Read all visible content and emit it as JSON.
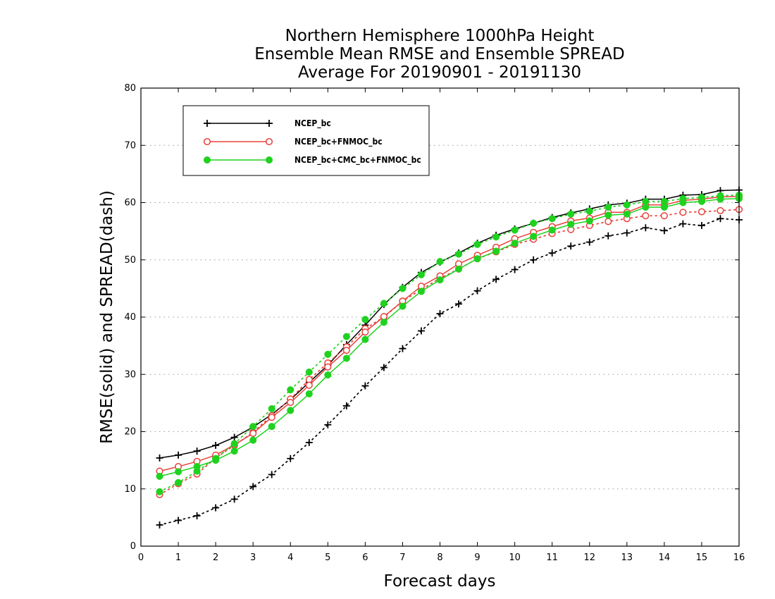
{
  "chart_data": {
    "type": "line",
    "title": [
      "Northern Hemisphere 1000hPa Height",
      "Ensemble Mean RMSE and Ensemble SPREAD",
      "Average For 20190901 - 20191130"
    ],
    "xlabel": "Forecast days",
    "ylabel": "RMSE(solid) and SPREAD(dash)",
    "xlim": [
      0,
      16
    ],
    "ylim": [
      0,
      80
    ],
    "xticks": [
      0,
      1,
      2,
      3,
      4,
      5,
      6,
      7,
      8,
      9,
      10,
      11,
      12,
      13,
      14,
      15,
      16
    ],
    "yticks": [
      0,
      10,
      20,
      30,
      40,
      50,
      60,
      70,
      80
    ],
    "grid": "horizontal dotted",
    "legend_position": "top-left",
    "x": [
      0.5,
      1,
      1.5,
      2,
      2.5,
      3,
      3.5,
      4,
      4.5,
      5,
      5.5,
      6,
      6.5,
      7,
      7.5,
      8,
      8.5,
      9,
      9.5,
      10,
      10.5,
      11,
      11.5,
      12,
      12.5,
      13,
      13.5,
      14,
      14.5,
      15,
      15.5,
      16
    ],
    "series": [
      {
        "name": "NCEP_bc",
        "color": "#000000",
        "marker": "plus",
        "rmse": [
          15.4,
          15.9,
          16.6,
          17.6,
          19.0,
          20.8,
          23.0,
          25.6,
          28.6,
          31.6,
          35.2,
          38.6,
          42.2,
          45.2,
          47.8,
          49.6,
          51.2,
          52.9,
          54.3,
          55.4,
          56.4,
          57.4,
          58.2,
          58.9,
          59.6,
          59.9,
          60.6,
          60.6,
          61.3,
          61.4,
          62.1,
          62.2
        ],
        "spread": [
          3.7,
          4.5,
          5.3,
          6.7,
          8.2,
          10.4,
          12.5,
          15.3,
          18.1,
          21.2,
          24.5,
          28.0,
          31.2,
          34.5,
          37.6,
          40.6,
          42.3,
          44.6,
          46.6,
          48.3,
          50.0,
          51.2,
          52.4,
          53.1,
          54.2,
          54.7,
          55.6,
          55.1,
          56.3,
          56.0,
          57.2,
          57.0
        ]
      },
      {
        "name": "NCEP_bc+FNMOC_bc",
        "color": "#e8413c",
        "marker": "open-circle",
        "rmse": [
          13.1,
          13.9,
          14.8,
          15.9,
          17.7,
          19.7,
          22.5,
          25.1,
          28.1,
          31.3,
          34.2,
          37.4,
          40.1,
          42.8,
          45.4,
          47.2,
          49.3,
          50.8,
          52.2,
          53.7,
          54.8,
          55.8,
          56.8,
          57.3,
          58.3,
          58.3,
          59.6,
          59.6,
          60.4,
          60.6,
          61.0,
          61.1
        ],
        "spread": [
          9.0,
          10.9,
          12.6,
          15.4,
          17.6,
          19.9,
          22.8,
          25.7,
          29.1,
          32.0,
          34.8,
          38.0,
          40.0,
          42.8,
          44.8,
          46.8,
          48.4,
          50.2,
          51.4,
          52.7,
          53.6,
          54.6,
          55.3,
          56.0,
          56.7,
          57.2,
          57.7,
          57.7,
          58.3,
          58.4,
          58.6,
          58.8
        ]
      },
      {
        "name": "NCEP_bc+CMC_bc+FNMOC_bc",
        "color": "#1fd21f",
        "marker": "filled-circle",
        "rmse": [
          12.2,
          13.0,
          13.9,
          15.0,
          16.6,
          18.5,
          20.9,
          23.7,
          26.6,
          29.9,
          32.8,
          36.1,
          39.1,
          41.9,
          44.5,
          46.5,
          48.4,
          50.2,
          51.5,
          52.9,
          54.1,
          55.2,
          56.2,
          56.8,
          57.8,
          58.0,
          59.2,
          59.2,
          60.0,
          60.2,
          60.6,
          60.7
        ],
        "spread": [
          9.5,
          11.1,
          13.1,
          15.3,
          17.9,
          20.9,
          24.0,
          27.3,
          30.4,
          33.5,
          36.6,
          39.6,
          42.4,
          45.0,
          47.4,
          49.7,
          51.0,
          52.7,
          54.0,
          55.2,
          56.4,
          57.2,
          58.0,
          58.5,
          59.2,
          59.6,
          60.2,
          60.2,
          60.7,
          60.9,
          61.2,
          61.3
        ]
      }
    ]
  }
}
